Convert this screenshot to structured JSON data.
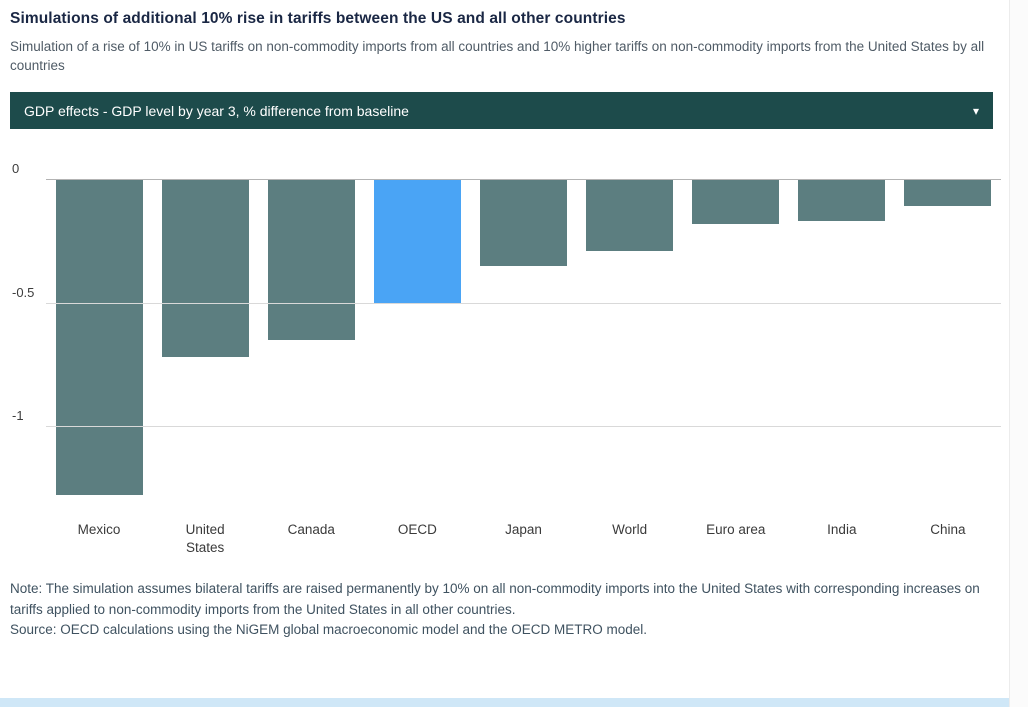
{
  "header": {
    "title": "Simulations of additional 10% rise in tariffs between the US and all other countries",
    "subtitle": "Simulation of a rise of 10% in US tariffs on non-commodity imports from all countries and 10% higher tariffs on non-commodity imports from the United States by all countries"
  },
  "dropdown": {
    "selected_label": "GDP effects - GDP level by year 3, % difference from baseline",
    "caret": "▾"
  },
  "footer": {
    "note": "Note: The simulation assumes bilateral tariffs are raised permanently by 10% on all non-commodity imports into the United States with corresponding increases on tariffs applied to non-commodity imports from the United States in all other countries.",
    "source": "Source: OECD calculations using the NiGEM global macroeconomic model and the OECD METRO model."
  },
  "colors": {
    "bar": "#5c7e80",
    "highlight": "#4aa4f5",
    "dropdown_bg": "#1d4b4b",
    "footer_strip": "#cfe7f7"
  },
  "chart_data": {
    "type": "bar",
    "title": "GDP effects - GDP level by year 3, % difference from baseline",
    "categories": [
      "Mexico",
      "United States",
      "Canada",
      "OECD",
      "Japan",
      "World",
      "Euro area",
      "India",
      "China"
    ],
    "values": [
      -1.28,
      -0.72,
      -0.65,
      -0.5,
      -0.35,
      -0.29,
      -0.18,
      -0.17,
      -0.11
    ],
    "xlabel": "",
    "ylabel": "GDP level by year 3, % difference from baseline",
    "ylim": [
      -1.35,
      0
    ],
    "yticks": [
      0,
      -0.5,
      -1
    ],
    "grid": true,
    "legend": false,
    "highlight_category": "OECD"
  }
}
